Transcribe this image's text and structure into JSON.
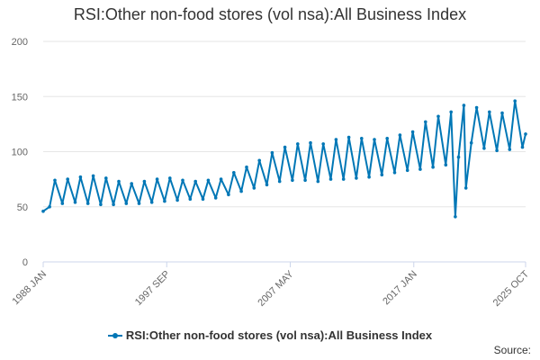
{
  "title": "RSI:Other non-food stores (vol nsa):All Business Index",
  "source_label": "Source:",
  "colors": {
    "series": "#0077b6",
    "grid": "#e6e6e6",
    "axis_text": "#666666"
  },
  "chart_data": {
    "type": "line",
    "x_tick_labels": [
      "1988 JAN",
      "1997 SEP",
      "2007 MAY",
      "2017 JAN",
      "2025 OCT"
    ],
    "y_tick_labels": [
      "0",
      "50",
      "100",
      "150",
      "200"
    ],
    "ylim": [
      0,
      200
    ],
    "grid": "horizontal",
    "legend_position": "bottom",
    "series": [
      {
        "name": "RSI:Other non-food stores (vol nsa):All Business Index",
        "points": [
          [
            "1988-01",
            46
          ],
          [
            "1988-07",
            50
          ],
          [
            "1988-12",
            74
          ],
          [
            "1989-07",
            53
          ],
          [
            "1989-12",
            75
          ],
          [
            "1990-07",
            54
          ],
          [
            "1990-12",
            77
          ],
          [
            "1991-07",
            53
          ],
          [
            "1991-12",
            78
          ],
          [
            "1992-07",
            52
          ],
          [
            "1992-12",
            76
          ],
          [
            "1993-07",
            52
          ],
          [
            "1993-12",
            73
          ],
          [
            "1994-07",
            53
          ],
          [
            "1994-12",
            71
          ],
          [
            "1995-07",
            53
          ],
          [
            "1995-12",
            73
          ],
          [
            "1996-07",
            54
          ],
          [
            "1996-12",
            75
          ],
          [
            "1997-07",
            55
          ],
          [
            "1997-12",
            76
          ],
          [
            "1998-07",
            56
          ],
          [
            "1998-12",
            74
          ],
          [
            "1999-07",
            57
          ],
          [
            "1999-12",
            73
          ],
          [
            "2000-07",
            57
          ],
          [
            "2000-12",
            74
          ],
          [
            "2001-07",
            58
          ],
          [
            "2001-12",
            75
          ],
          [
            "2002-07",
            61
          ],
          [
            "2002-12",
            81
          ],
          [
            "2003-07",
            64
          ],
          [
            "2003-12",
            86
          ],
          [
            "2004-07",
            67
          ],
          [
            "2004-12",
            92
          ],
          [
            "2005-07",
            70
          ],
          [
            "2005-12",
            99
          ],
          [
            "2006-07",
            73
          ],
          [
            "2006-12",
            104
          ],
          [
            "2007-07",
            74
          ],
          [
            "2007-12",
            107
          ],
          [
            "2008-07",
            74
          ],
          [
            "2008-12",
            108
          ],
          [
            "2009-07",
            73
          ],
          [
            "2009-12",
            107
          ],
          [
            "2010-07",
            75
          ],
          [
            "2010-12",
            111
          ],
          [
            "2011-07",
            75
          ],
          [
            "2011-12",
            113
          ],
          [
            "2012-07",
            76
          ],
          [
            "2012-12",
            112
          ],
          [
            "2013-07",
            77
          ],
          [
            "2013-12",
            111
          ],
          [
            "2014-07",
            79
          ],
          [
            "2014-12",
            112
          ],
          [
            "2015-07",
            81
          ],
          [
            "2015-12",
            115
          ],
          [
            "2016-07",
            83
          ],
          [
            "2016-12",
            118
          ],
          [
            "2017-07",
            84
          ],
          [
            "2017-12",
            127
          ],
          [
            "2018-07",
            86
          ],
          [
            "2018-12",
            132
          ],
          [
            "2019-07",
            88
          ],
          [
            "2019-12",
            136
          ],
          [
            "2020-04",
            41
          ],
          [
            "2020-07",
            95
          ],
          [
            "2020-12",
            142
          ],
          [
            "2021-02",
            67
          ],
          [
            "2021-07",
            108
          ],
          [
            "2021-12",
            140
          ],
          [
            "2022-07",
            103
          ],
          [
            "2022-12",
            136
          ],
          [
            "2023-07",
            101
          ],
          [
            "2023-12",
            135
          ],
          [
            "2024-07",
            102
          ],
          [
            "2024-12",
            146
          ],
          [
            "2025-07",
            104
          ],
          [
            "2025-10",
            116
          ]
        ]
      }
    ]
  }
}
